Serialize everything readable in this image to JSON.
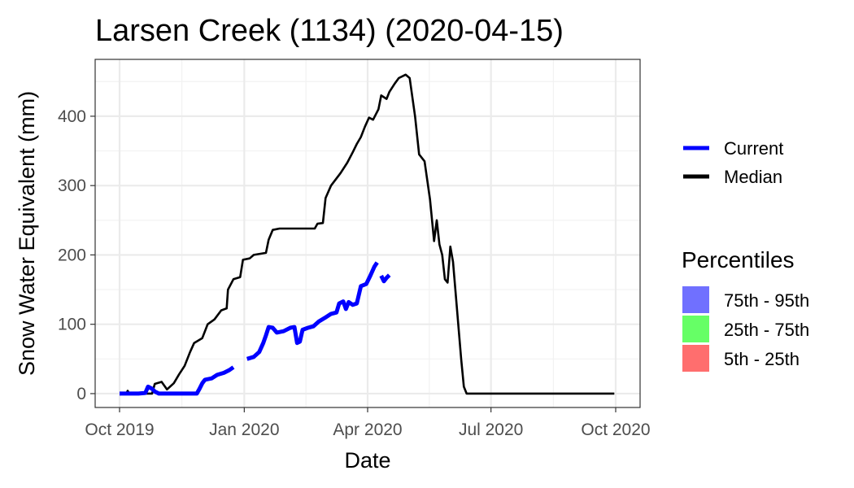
{
  "chart_data": {
    "type": "line",
    "title": "Larsen Creek (1134) (2020-04-15)",
    "xlabel": "Date",
    "ylabel": "Snow Water Equivalent (mm)",
    "x_ticks": [
      "2019-10-01",
      "2020-01-01",
      "2020-04-01",
      "2020-07-01",
      "2020-10-01"
    ],
    "x_tick_labels": [
      "Oct 2019",
      "Jan 2020",
      "Apr 2020",
      "Jul 2020",
      "Oct 2020"
    ],
    "y_ticks": [
      0,
      100,
      200,
      300,
      400
    ],
    "xlim": [
      "2019-09-13",
      "2020-10-19"
    ],
    "ylim": [
      -20,
      482
    ],
    "grid": true,
    "legend_position": "right",
    "series": [
      {
        "name": "Current",
        "color": "#0000ff",
        "segments": [
          [
            [
              "2019-10-01",
              0
            ],
            [
              "2019-10-15",
              0
            ],
            [
              "2019-10-20",
              1
            ],
            [
              "2019-10-22",
              10
            ],
            [
              "2019-10-25",
              7
            ],
            [
              "2019-10-27",
              3
            ],
            [
              "2019-10-30",
              0
            ],
            [
              "2019-11-15",
              0
            ],
            [
              "2019-11-27",
              0
            ],
            [
              "2019-11-29",
              7
            ],
            [
              "2019-12-01",
              15
            ],
            [
              "2019-12-03",
              20
            ],
            [
              "2019-12-08",
              22
            ],
            [
              "2019-12-12",
              27
            ],
            [
              "2019-12-17",
              30
            ],
            [
              "2019-12-21",
              34
            ],
            [
              "2019-12-24",
              38
            ]
          ],
          [
            [
              "2020-01-03",
              50
            ],
            [
              "2020-01-08",
              53
            ],
            [
              "2020-01-12",
              60
            ],
            [
              "2020-01-15",
              73
            ],
            [
              "2020-01-17",
              84
            ],
            [
              "2020-01-19",
              96
            ],
            [
              "2020-01-22",
              95
            ],
            [
              "2020-01-25",
              88
            ],
            [
              "2020-01-30",
              90
            ],
            [
              "2020-02-04",
              95
            ],
            [
              "2020-02-07",
              96
            ],
            [
              "2020-02-09",
              73
            ],
            [
              "2020-02-11",
              75
            ],
            [
              "2020-02-13",
              92
            ],
            [
              "2020-02-17",
              95
            ],
            [
              "2020-02-21",
              97
            ],
            [
              "2020-02-25",
              104
            ],
            [
              "2020-03-01",
              110
            ],
            [
              "2020-03-05",
              115
            ],
            [
              "2020-03-09",
              117
            ],
            [
              "2020-03-11",
              130
            ],
            [
              "2020-03-14",
              133
            ],
            [
              "2020-03-16",
              122
            ],
            [
              "2020-03-18",
              132
            ],
            [
              "2020-03-21",
              128
            ],
            [
              "2020-03-24",
              130
            ],
            [
              "2020-03-27",
              155
            ],
            [
              "2020-03-31",
              158
            ],
            [
              "2020-04-03",
              170
            ],
            [
              "2020-04-06",
              183
            ],
            [
              "2020-04-08",
              189
            ]
          ],
          [
            [
              "2020-04-11",
              170
            ],
            [
              "2020-04-13",
              162
            ],
            [
              "2020-04-15",
              167
            ],
            [
              "2020-04-17",
              171
            ]
          ]
        ]
      },
      {
        "name": "Median",
        "color": "#000000",
        "segments": [
          [
            [
              "2019-10-01",
              0
            ],
            [
              "2019-10-06",
              0
            ],
            [
              "2019-10-07",
              4
            ],
            [
              "2019-10-08",
              0
            ],
            [
              "2019-10-25",
              0
            ],
            [
              "2019-10-27",
              14
            ],
            [
              "2019-11-01",
              17
            ],
            [
              "2019-11-05",
              6
            ],
            [
              "2019-11-10",
              15
            ],
            [
              "2019-11-14",
              28
            ],
            [
              "2019-11-18",
              40
            ],
            [
              "2019-11-22",
              60
            ],
            [
              "2019-11-25",
              73
            ],
            [
              "2019-12-01",
              80
            ],
            [
              "2019-12-05",
              100
            ],
            [
              "2019-12-10",
              107
            ],
            [
              "2019-12-15",
              120
            ],
            [
              "2019-12-19",
              123
            ],
            [
              "2019-12-20",
              150
            ],
            [
              "2019-12-24",
              165
            ],
            [
              "2019-12-29",
              168
            ],
            [
              "2019-12-31",
              193
            ],
            [
              "2020-01-05",
              195
            ],
            [
              "2020-01-08",
              200
            ],
            [
              "2020-01-17",
              203
            ],
            [
              "2020-01-19",
              222
            ],
            [
              "2020-01-22",
              236
            ],
            [
              "2020-01-27",
              238
            ],
            [
              "2020-02-22",
              238
            ],
            [
              "2020-02-24",
              245
            ],
            [
              "2020-02-28",
              246
            ],
            [
              "2020-03-01",
              282
            ],
            [
              "2020-03-05",
              300
            ],
            [
              "2020-03-12",
              318
            ],
            [
              "2020-03-17",
              333
            ],
            [
              "2020-03-21",
              348
            ],
            [
              "2020-03-24",
              360
            ],
            [
              "2020-03-27",
              370
            ],
            [
              "2020-03-30",
              385
            ],
            [
              "2020-04-02",
              398
            ],
            [
              "2020-04-05",
              395
            ],
            [
              "2020-04-09",
              410
            ],
            [
              "2020-04-11",
              430
            ],
            [
              "2020-04-15",
              425
            ],
            [
              "2020-04-17",
              435
            ],
            [
              "2020-04-21",
              447
            ],
            [
              "2020-04-24",
              455
            ],
            [
              "2020-04-29",
              460
            ],
            [
              "2020-05-02",
              455
            ],
            [
              "2020-05-06",
              400
            ],
            [
              "2020-05-09",
              345
            ],
            [
              "2020-05-13",
              335
            ],
            [
              "2020-05-17",
              280
            ],
            [
              "2020-05-20",
              220
            ],
            [
              "2020-05-22",
              250
            ],
            [
              "2020-05-24",
              215
            ],
            [
              "2020-05-26",
              200
            ],
            [
              "2020-05-28",
              165
            ],
            [
              "2020-05-30",
              160
            ],
            [
              "2020-06-01",
              212
            ],
            [
              "2020-06-03",
              190
            ],
            [
              "2020-06-06",
              120
            ],
            [
              "2020-06-09",
              50
            ],
            [
              "2020-06-11",
              10
            ],
            [
              "2020-06-13",
              0
            ],
            [
              "2020-09-30",
              0
            ]
          ]
        ]
      }
    ],
    "legend": {
      "lines": [
        "Current",
        "Median"
      ],
      "percentiles_title": "Percentiles",
      "percentiles": [
        {
          "label": "75th - 95th",
          "color": "#7070ff"
        },
        {
          "label": "25th - 75th",
          "color": "#66ff66"
        },
        {
          "label": "5th - 25th",
          "color": "#ff6e6e"
        }
      ]
    }
  }
}
